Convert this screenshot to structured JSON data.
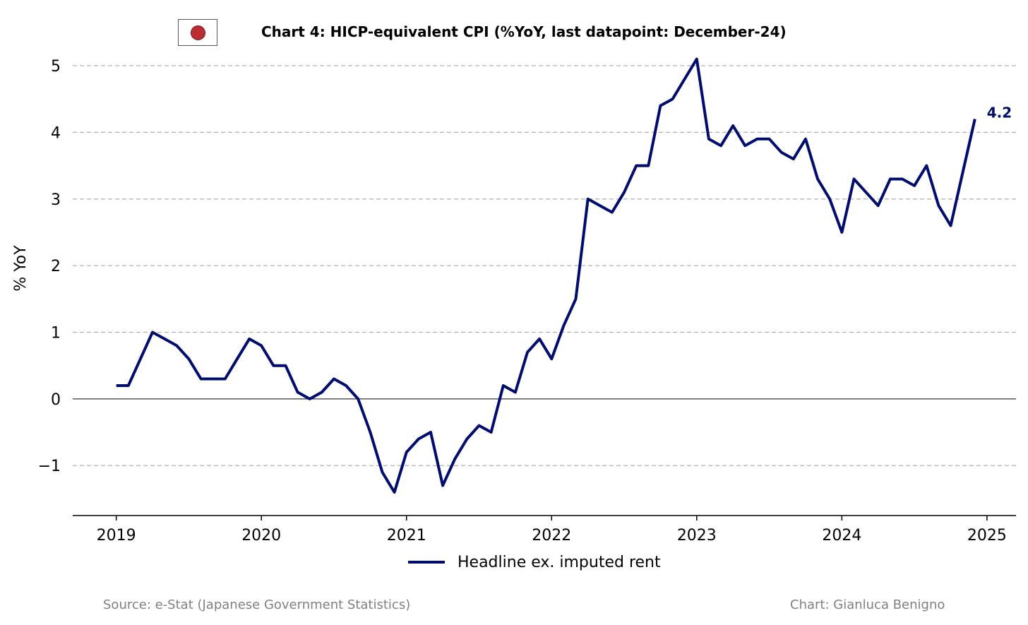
{
  "title": "Chart 4: HICP-equivalent CPI (%YoY, last datapoint: December-24)",
  "flag": {
    "icon": "japan-flag-icon",
    "color": "#bc2c33"
  },
  "footer": {
    "source": "Source: e-Stat (Japanese Government Statistics)",
    "credit": "Chart: Gianluca Benigno"
  },
  "colors": {
    "series": "#000c6e",
    "grid": "#b0b0b0",
    "zero": "#000000"
  },
  "chart_data": {
    "type": "line",
    "title": "Chart 4: HICP-equivalent CPI (%YoY, last datapoint: December-24)",
    "xlabel": "",
    "ylabel": "% YoY",
    "xlim": [
      2018.7,
      2025.2
    ],
    "ylim": [
      -1.75,
      5.35
    ],
    "x_ticks": [
      2019,
      2020,
      2021,
      2022,
      2023,
      2024,
      2025
    ],
    "x_tick_labels": [
      "2019",
      "2020",
      "2021",
      "2022",
      "2023",
      "2024",
      "2025"
    ],
    "y_ticks": [
      -1,
      0,
      1,
      2,
      3,
      4,
      5
    ],
    "y_tick_labels": [
      "−1",
      "0",
      "1",
      "2",
      "3",
      "4",
      "5"
    ],
    "grid": "horizontal dashed",
    "legend_position": "bottom-center",
    "series": [
      {
        "name": "Headline ex. imputed rent",
        "start": "2019-01",
        "frequency": "monthly",
        "values": [
          0.2,
          0.2,
          0.6,
          1.0,
          0.9,
          0.8,
          0.6,
          0.3,
          0.3,
          0.3,
          0.6,
          0.9,
          0.8,
          0.5,
          0.5,
          0.1,
          0.0,
          0.1,
          0.3,
          0.2,
          0.0,
          -0.5,
          -1.1,
          -1.4,
          -0.8,
          -0.6,
          -0.5,
          -1.3,
          -0.9,
          -0.6,
          -0.4,
          -0.5,
          0.2,
          0.1,
          0.7,
          0.9,
          0.6,
          1.1,
          1.5,
          3.0,
          2.9,
          2.8,
          3.1,
          3.5,
          3.5,
          4.4,
          4.5,
          4.8,
          5.1,
          3.9,
          3.8,
          4.1,
          3.8,
          3.9,
          3.9,
          3.7,
          3.6,
          3.9,
          3.3,
          3.0,
          2.5,
          3.3,
          3.1,
          2.9,
          3.3,
          3.3,
          3.2,
          3.5,
          2.9,
          2.6,
          3.4,
          4.2
        ]
      }
    ],
    "annotations": [
      {
        "label": "4.2",
        "value": 4.2,
        "date": "2024-12"
      }
    ]
  }
}
